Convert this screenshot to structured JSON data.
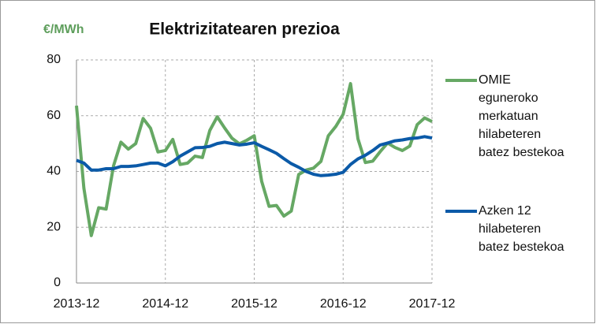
{
  "chart_data": {
    "type": "line",
    "title": "Elektrizitatearen prezioa",
    "y_label": "€/MWh",
    "categories": [
      "2013-12",
      null,
      null,
      null,
      null,
      null,
      null,
      null,
      null,
      null,
      null,
      null,
      "2014-12",
      null,
      null,
      null,
      null,
      null,
      null,
      null,
      null,
      null,
      null,
      null,
      "2015-12",
      null,
      null,
      null,
      null,
      null,
      null,
      null,
      null,
      null,
      null,
      null,
      "2016-12",
      null,
      null,
      null,
      null,
      null,
      null,
      null,
      null,
      null,
      null,
      null,
      "2017-12"
    ],
    "series": [
      {
        "name": "OMIE eguneroko merkatuan hilabeteren batez bestekoa",
        "color": "#66a864",
        "values": [
          63.6,
          34,
          17,
          27,
          26.5,
          42,
          50.5,
          48,
          50,
          59,
          55.5,
          47,
          47.5,
          51.5,
          42.5,
          43,
          45.5,
          45,
          54.7,
          59.6,
          55.6,
          51.9,
          49.9,
          51.2,
          52.8,
          36.5,
          27.5,
          27.8,
          24,
          25.8,
          38.9,
          40.5,
          41.2,
          43.6,
          52.8,
          56.1,
          60.5,
          71.5,
          51.7,
          43.2,
          43.7,
          47.1,
          50.2,
          48.6,
          47.5,
          49.1,
          56.8,
          59.2,
          57.9
        ]
      },
      {
        "name": "Azken 12 hilabeteren batez bestekoa",
        "color": "#0b5aa8",
        "values": [
          44,
          43,
          40.5,
          40.5,
          41,
          41,
          41.8,
          41.8,
          42,
          42.5,
          43,
          43,
          42,
          43.5,
          45.5,
          47,
          48.5,
          48.6,
          49,
          50,
          50.5,
          50,
          49.5,
          49.8,
          50.3,
          49,
          47.8,
          46.5,
          44.6,
          42.8,
          41.5,
          40,
          39,
          38.5,
          38.7,
          39,
          39.7,
          42.5,
          44.5,
          45.8,
          47.5,
          49.5,
          50.2,
          51,
          51.3,
          51.8,
          52,
          52.5,
          52
        ]
      }
    ],
    "ylim": [
      0,
      80
    ],
    "yticks": [
      0,
      20,
      40,
      60,
      80
    ],
    "grid": true
  }
}
